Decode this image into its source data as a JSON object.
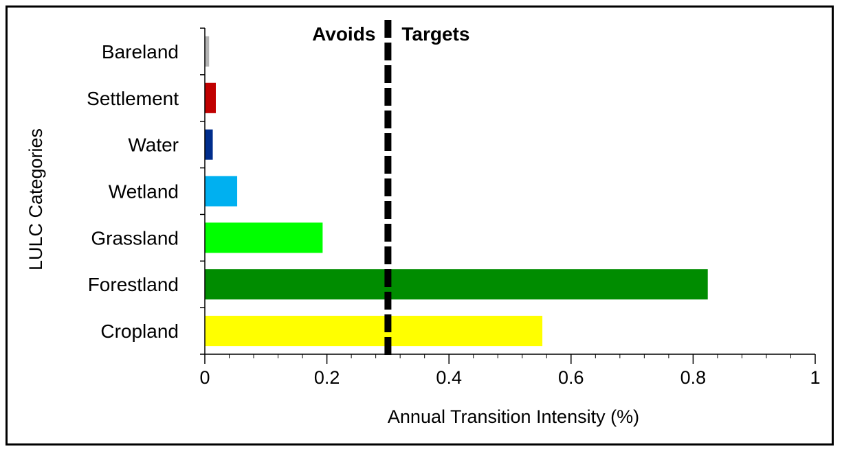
{
  "chart_data": {
    "type": "bar",
    "orientation": "horizontal",
    "categories": [
      "Cropland",
      "Forestland",
      "Grassland",
      "Wetland",
      "Water",
      "Settlement",
      "Bareland"
    ],
    "values": [
      0.553,
      0.824,
      0.193,
      0.053,
      0.013,
      0.018,
      0.007
    ],
    "colors": [
      "#ffff00",
      "#008c00",
      "#00ff00",
      "#00b0f0",
      "#002d8c",
      "#c00000",
      "#b4b4b4"
    ],
    "xlabel": "Annual Transition Intensity (%)",
    "ylabel": "LULC Categories",
    "xlim": [
      0,
      1
    ],
    "xticks": [
      0,
      0.2,
      0.4,
      0.6,
      0.8,
      1
    ],
    "xtick_labels": [
      "0",
      "0.2",
      "0.4",
      "0.6",
      "0.8",
      "1"
    ],
    "minor_xtick_step": 0.04,
    "grid": false,
    "reference_line": {
      "value": 0.3,
      "style": "dashed",
      "color": "#000000",
      "left_label": "Avoids",
      "right_label": "Targets"
    }
  }
}
